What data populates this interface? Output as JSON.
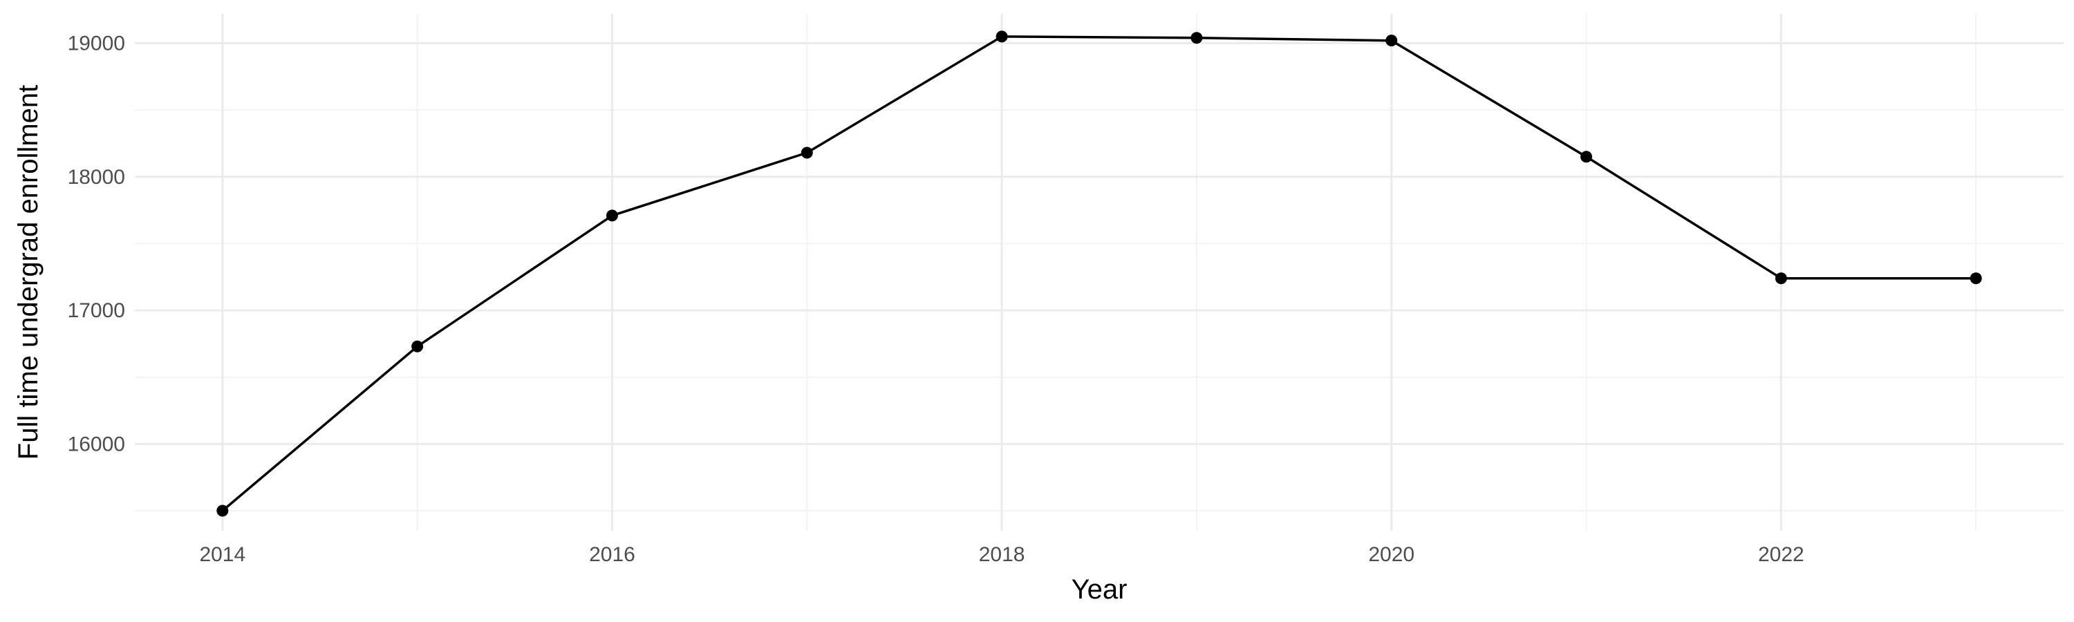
{
  "chart_data": {
    "type": "line",
    "title": "",
    "xlabel": "Year",
    "ylabel": "Full time undergrad enrollment",
    "x": [
      2014,
      2015,
      2016,
      2017,
      2018,
      2019,
      2020,
      2021,
      2022,
      2023
    ],
    "series": [
      {
        "values": [
          15500,
          16730,
          17710,
          18180,
          19050,
          19040,
          19020,
          18150,
          17240,
          17240
        ]
      }
    ],
    "xlim": [
      2013.55,
      2023.45
    ],
    "ylim": [
      15350,
      19220
    ],
    "x_ticks": [
      2014,
      2016,
      2018,
      2020,
      2022
    ],
    "x_tick_labels": [
      "2014",
      "2016",
      "2018",
      "2020",
      "2022"
    ],
    "y_ticks": [
      16000,
      17000,
      18000,
      19000
    ],
    "y_tick_labels": [
      "16000",
      "17000",
      "18000",
      "19000"
    ],
    "grid": true,
    "legend": "none",
    "colors": {
      "line": "#000000",
      "point": "#000000",
      "grid_major": "#ebebeb",
      "grid_minor": "#f3f3f3"
    }
  }
}
